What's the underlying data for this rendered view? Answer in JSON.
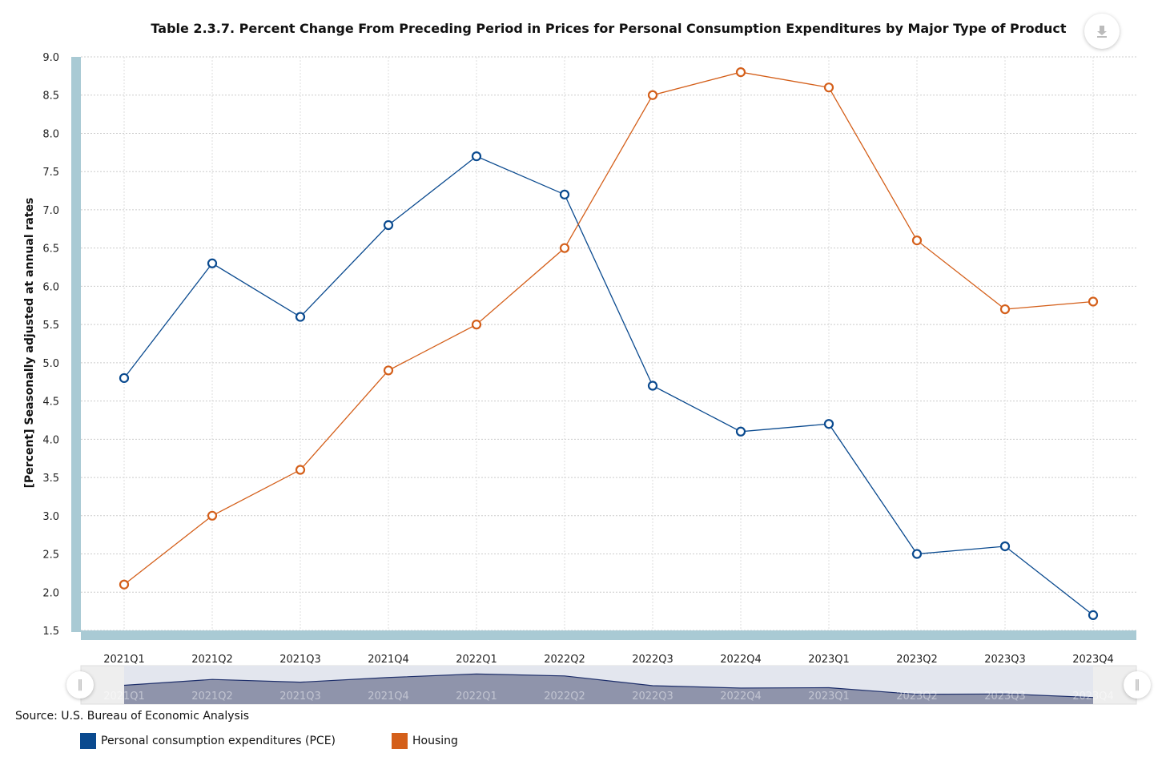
{
  "chart_data": {
    "type": "line",
    "title": "Table 2.3.7. Percent Change From Preceding Period in Prices for Personal Consumption Expenditures by Major Type of Product",
    "xlabel": "",
    "ylabel": "[Percent] Seasonally adjusted at annual rates",
    "categories": [
      "2021Q1",
      "2021Q2",
      "2021Q3",
      "2021Q4",
      "2022Q1",
      "2022Q2",
      "2022Q3",
      "2022Q4",
      "2023Q1",
      "2023Q2",
      "2023Q3",
      "2023Q4"
    ],
    "ylim": [
      1.5,
      9.0
    ],
    "yticks": [
      "1.5",
      "2.0",
      "2.5",
      "3.0",
      "3.5",
      "4.0",
      "4.5",
      "5.0",
      "5.5",
      "6.0",
      "6.5",
      "7.0",
      "7.5",
      "8.0",
      "8.5",
      "9.0"
    ],
    "grid": true,
    "legend_position": "bottom-left",
    "series": [
      {
        "name": "Personal consumption expenditures (PCE)",
        "color": "#0a4a8f",
        "values": [
          4.8,
          6.3,
          5.6,
          6.8,
          7.7,
          7.2,
          4.7,
          4.1,
          4.2,
          2.5,
          2.6,
          1.7
        ]
      },
      {
        "name": "Housing",
        "color": "#d45f1a",
        "values": [
          2.1,
          3.0,
          3.6,
          4.9,
          5.5,
          6.5,
          8.5,
          8.8,
          8.6,
          6.6,
          5.7,
          5.8
        ]
      }
    ]
  },
  "source": "Source: U.S. Bureau of Economic Analysis",
  "icons": {
    "download": "download-icon",
    "navigator_handle": "grip-icon"
  }
}
